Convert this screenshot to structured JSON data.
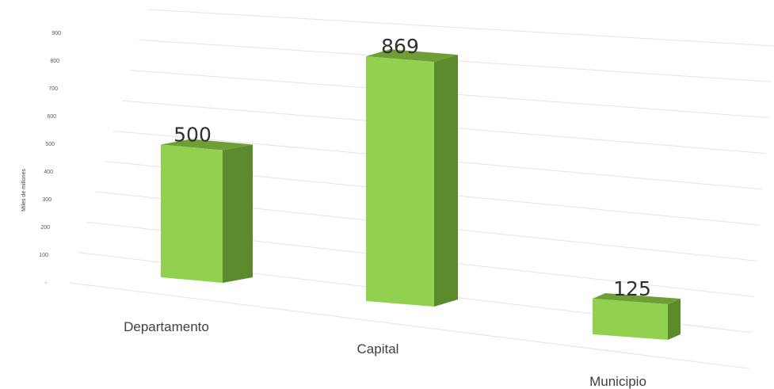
{
  "chart_data": {
    "type": "bar",
    "categories": [
      "Departamento",
      "Capital",
      "Municipio"
    ],
    "values": [
      500,
      869,
      125
    ],
    "data_labels": [
      "500",
      "869",
      "125"
    ],
    "title": "",
    "xlabel": "",
    "ylabel": "Miles de millones",
    "ylim": [
      0,
      900
    ],
    "yticks": [
      0,
      100,
      200,
      300,
      400,
      500,
      600,
      700,
      800,
      900
    ],
    "ytick_labels": [
      "-",
      "100",
      "200",
      "300",
      "400",
      "500",
      "600",
      "700",
      "800",
      "900"
    ],
    "grid": true,
    "legend": "none",
    "style": "3d-column",
    "colors": {
      "bar_front": "#92d050",
      "bar_side": "#5e8a2e",
      "bar_top": "#6f9e36",
      "grid": "#e3e3e3",
      "text": "#404040"
    }
  }
}
